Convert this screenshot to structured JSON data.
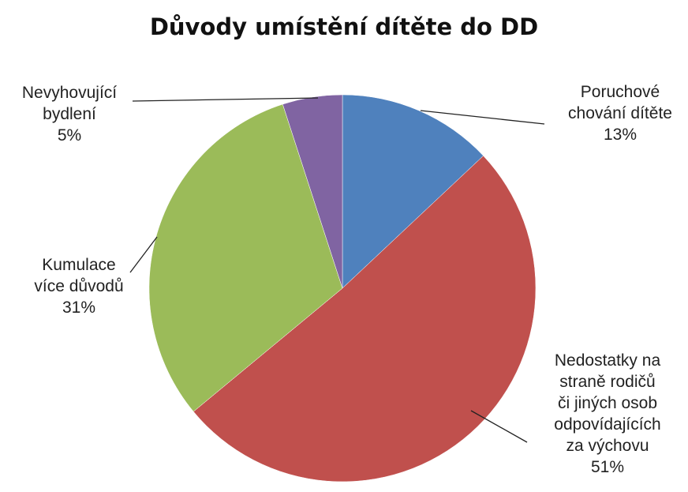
{
  "chart_data": {
    "type": "pie",
    "title": "Důvody umístění dítěte do DD",
    "start_angle_deg": 0,
    "direction": "clockwise",
    "slices": [
      {
        "label_lines": [
          "Poruchové",
          "chování dítěte",
          "13%"
        ],
        "value": 13,
        "color": "#4f81bd"
      },
      {
        "label_lines": [
          "Nedostatky na",
          "straně rodičů",
          "či jiných osob",
          "odpovídajících",
          "za výchovu",
          "51%"
        ],
        "value": 51,
        "color": "#c0504d"
      },
      {
        "label_lines": [
          "Kumulace",
          "více důvodů",
          "31%"
        ],
        "value": 31,
        "color": "#9bbb59"
      },
      {
        "label_lines": [
          "Nevyhovující",
          "bydlení",
          "5%"
        ],
        "value": 5,
        "color": "#8064a2"
      }
    ]
  }
}
